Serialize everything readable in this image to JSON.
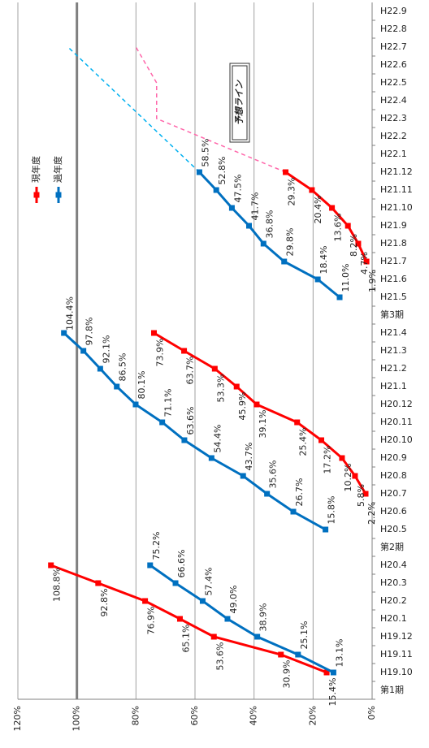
{
  "chart_data": {
    "type": "line",
    "categories": [
      "第1期",
      "H19.10",
      "H19.11",
      "H19.12",
      "H20.1",
      "H20.2",
      "H20.3",
      "H20.4",
      "第2期",
      "H20.5",
      "H20.6",
      "H20.7",
      "H20.8",
      "H20.9",
      "H20.10",
      "H20.11",
      "H20.12",
      "H21.1",
      "H21.2",
      "H21.3",
      "H21.4",
      "第3期",
      "H21.5",
      "H21.6",
      "H21.7",
      "H21.8",
      "H21.9",
      "H21.10",
      "H21.11",
      "H21.12",
      "H22.1",
      "H22.2",
      "H22.3",
      "H22.4",
      "H22.5",
      "H22.6",
      "H22.7",
      "H22.8",
      "H22.9"
    ],
    "series": [
      {
        "name": "現年度",
        "color": "#ff0000",
        "values": [
          null,
          15.4,
          30.9,
          53.6,
          65.1,
          76.9,
          92.8,
          108.8,
          null,
          null,
          null,
          2.2,
          5.8,
          10.2,
          17.2,
          25.4,
          39.1,
          45.9,
          53.3,
          63.7,
          73.9,
          null,
          null,
          null,
          1.9,
          4.7,
          8.2,
          13.6,
          20.4,
          29.3,
          null,
          null,
          null,
          null,
          null,
          null,
          null,
          null,
          null
        ],
        "value_labels": [
          null,
          "15.4%",
          "30.9%",
          "53.6%",
          "65.1%",
          "76.9%",
          "92.8%",
          "108.8%",
          null,
          null,
          null,
          "2.2%",
          "5.8%",
          "10.2%",
          "17.2%",
          "25.4%",
          "39.1%",
          "45.9%",
          "53.3%",
          "63.7%",
          "73.9%",
          null,
          null,
          null,
          "1.9%",
          "4.7%",
          "8.2%",
          "13.6%",
          "20.4%",
          "29.3%",
          null,
          null,
          null,
          null,
          null,
          null,
          null,
          null,
          null
        ]
      },
      {
        "name": "過年度",
        "color": "#0070c0",
        "values": [
          null,
          13.1,
          25.1,
          38.9,
          49.0,
          57.4,
          66.6,
          75.2,
          null,
          15.8,
          26.7,
          35.6,
          43.7,
          54.4,
          63.6,
          71.1,
          80.1,
          86.5,
          92.1,
          97.8,
          104.4,
          null,
          11.0,
          18.4,
          29.8,
          36.8,
          41.7,
          47.5,
          52.8,
          58.5,
          null,
          null,
          null,
          null,
          null,
          null,
          null,
          null,
          null
        ],
        "value_labels": [
          null,
          "13.1%",
          "25.1%",
          "38.9%",
          "49.0%",
          "57.4%",
          "66.6%",
          "75.2%",
          null,
          "15.8%",
          "26.7%",
          "35.6%",
          "43.7%",
          "54.4%",
          "63.6%",
          "71.1%",
          "80.1%",
          "86.5%",
          "92.1%",
          "97.8%",
          "104.4%",
          null,
          "11.0%",
          "18.4%",
          "29.8%",
          "36.8%",
          "41.7%",
          "47.5%",
          "52.8%",
          "58.5%",
          null,
          null,
          null,
          null,
          null,
          null,
          null,
          null,
          null
        ]
      }
    ],
    "forecast_lines": [
      {
        "color": "#00b0f0",
        "categories": [
          "H21.12",
          "H22.7"
        ],
        "values": [
          58.5,
          103
        ]
      },
      {
        "color": "#ff66aa",
        "categories": [
          "H21.12",
          "H22.3",
          "H22.5",
          "H22.7"
        ],
        "values": [
          29.3,
          73,
          73,
          80
        ]
      }
    ],
    "annotation": "予想ライン",
    "reference_line": 100,
    "ylim": [
      0,
      120
    ],
    "yticks": [
      {
        "value": 0,
        "label": "0%"
      },
      {
        "value": 20,
        "label": "20%"
      },
      {
        "value": 40,
        "label": "40%"
      },
      {
        "value": 60,
        "label": "60%"
      },
      {
        "value": 80,
        "label": "80%"
      },
      {
        "value": 100,
        "label": "100%"
      },
      {
        "value": 120,
        "label": "120%"
      }
    ],
    "grid": true,
    "legend": "top-right"
  }
}
